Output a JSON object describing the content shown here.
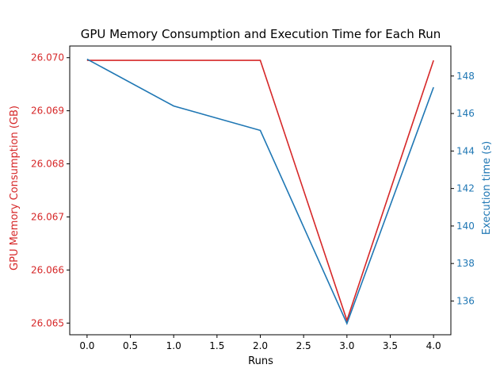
{
  "chart_data": {
    "type": "line",
    "title": "GPU Memory Consumption and Execution Time for Each Run",
    "xlabel": "Runs",
    "ylabel_left": "GPU Memory Consumption (GB)",
    "ylabel_right": "Execution time (s)",
    "x": [
      0,
      1,
      2,
      3,
      4
    ],
    "xlim": [
      -0.2,
      4.2
    ],
    "x_ticks": [
      "0.0",
      "0.5",
      "1.0",
      "1.5",
      "2.0",
      "2.5",
      "3.0",
      "3.5",
      "4.0"
    ],
    "ylim_left": [
      26.06478,
      26.07022
    ],
    "y_ticks_left": [
      "26.065",
      "26.066",
      "26.067",
      "26.068",
      "26.069",
      "26.070"
    ],
    "ylim_right": [
      134.2,
      149.6
    ],
    "y_ticks_right": [
      "136",
      "138",
      "140",
      "142",
      "144",
      "146",
      "148"
    ],
    "series": [
      {
        "axis": "left",
        "color": "#d62728",
        "values": [
          26.06995,
          26.06995,
          26.06995,
          26.06505,
          26.06995
        ]
      },
      {
        "axis": "right",
        "color": "#1f77b4",
        "values": [
          148.9,
          146.4,
          145.1,
          134.8,
          147.4
        ]
      }
    ],
    "grid": false,
    "left_axis_color": "#d62728",
    "right_axis_color": "#1f77b4"
  }
}
